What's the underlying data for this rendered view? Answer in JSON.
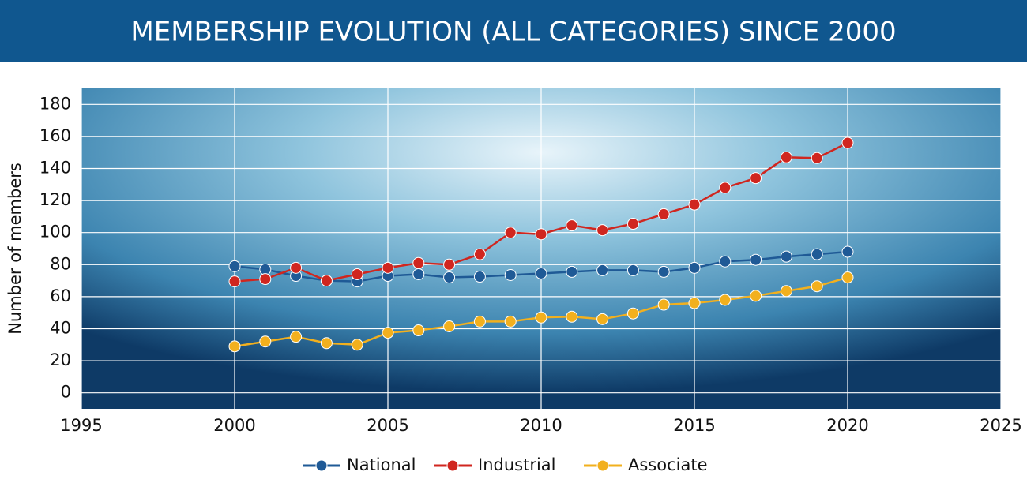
{
  "chart_data": {
    "type": "line",
    "title": "MEMBERSHIP EVOLUTION (ALL CATEGORIES) SINCE 2000",
    "y_label": "Number of members",
    "x": [
      2000,
      2001,
      2002,
      2003,
      2004,
      2005,
      2006,
      2007,
      2008,
      2009,
      2010,
      2011,
      2012,
      2013,
      2014,
      2015,
      2016,
      2017,
      2018,
      2019,
      2020
    ],
    "series": [
      {
        "name": "National",
        "color": "#1f5a96",
        "values": [
          79,
          77,
          73,
          70,
          69.5,
          73,
          74,
          72,
          72.5,
          73.5,
          74.5,
          75.5,
          76.5,
          76.5,
          75.5,
          78,
          82,
          83,
          85,
          86.5,
          88
        ]
      },
      {
        "name": "Industrial",
        "color": "#d0261f",
        "values": [
          69.5,
          71,
          78,
          70,
          74,
          78,
          81,
          80,
          86.5,
          100,
          99,
          104.5,
          101.5,
          105.5,
          111.5,
          117.5,
          128,
          134,
          147,
          146.5,
          156
        ]
      },
      {
        "name": "Associate",
        "color": "#f2b01e",
        "values": [
          29,
          32,
          35,
          31,
          30,
          37.5,
          39,
          41.5,
          44.5,
          44.5,
          47,
          47.5,
          46,
          49.5,
          55,
          56,
          58,
          60.5,
          63.5,
          66.5,
          72
        ]
      }
    ],
    "xlim": [
      1995,
      2025
    ],
    "xticks": [
      1995,
      2000,
      2005,
      2010,
      2015,
      2020,
      2025
    ],
    "ylim": [
      -10,
      190
    ],
    "yticks": [
      0,
      20,
      40,
      60,
      80,
      100,
      120,
      140,
      160,
      180
    ],
    "grid": true,
    "legend": "bottom"
  }
}
